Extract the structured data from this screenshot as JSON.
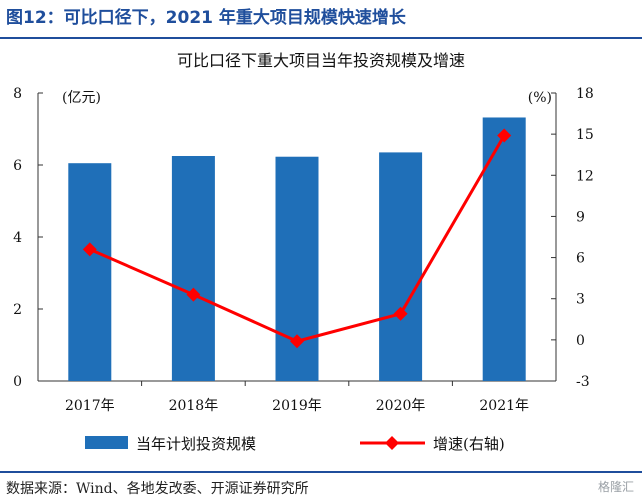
{
  "figure_title": "图12：可比口径下，2021 年重大项目规模快速增长",
  "source_note": "数据来源：Wind、各地发改委、开源证券研究所",
  "watermark": "格隆汇",
  "chart_data": {
    "type": "bar",
    "title": "可比口径下重大项目当年投资规模及增速",
    "categories": [
      "2017年",
      "2018年",
      "2019年",
      "2020年",
      "2021年"
    ],
    "series": [
      {
        "name": "当年计划投资规模",
        "type": "bar",
        "axis": "left",
        "color": "#1f6fb8",
        "values": [
          6.05,
          6.25,
          6.23,
          6.35,
          7.32
        ]
      },
      {
        "name": "增速(右轴)",
        "type": "line",
        "axis": "right",
        "color": "#ff0000",
        "values": [
          6.6,
          3.3,
          -0.1,
          1.9,
          14.9
        ]
      }
    ],
    "ylabel_left": "(亿元)",
    "ylabel_right": "(%)",
    "ylim_left": [
      0,
      8
    ],
    "yticks_left": [
      "0",
      "2",
      "4",
      "6",
      "8"
    ],
    "ylim_right": [
      -3,
      18
    ],
    "yticks_right": [
      "-3",
      "0",
      "3",
      "6",
      "9",
      "12",
      "15",
      "18"
    ],
    "grid": false,
    "legend_position": "bottom"
  }
}
